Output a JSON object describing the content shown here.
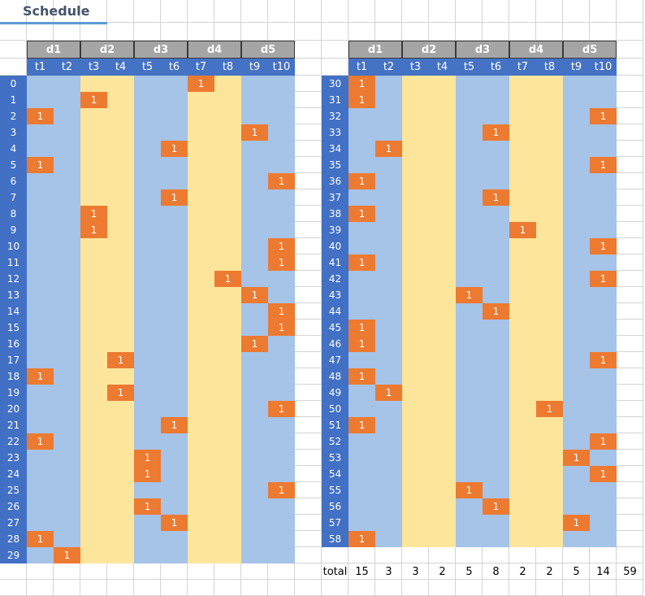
{
  "title": "Schedule",
  "groups": [
    "d1",
    "d2",
    "d3",
    "d4",
    "d5"
  ],
  "slots": [
    "t1",
    "t2",
    "t3",
    "t4",
    "t5",
    "t6",
    "t7",
    "t8",
    "t9",
    "t10"
  ],
  "cell_value": "1",
  "left_table": {
    "rows": [
      0,
      1,
      2,
      3,
      4,
      5,
      6,
      7,
      8,
      9,
      10,
      11,
      12,
      13,
      14,
      15,
      16,
      17,
      18,
      19,
      20,
      21,
      22,
      23,
      24,
      25,
      26,
      27,
      28,
      29
    ],
    "assigned_slot": [
      "t7",
      "t3",
      "t1",
      "t9",
      "t6",
      "t1",
      "t10",
      "t6",
      "t3",
      "t3",
      "t10",
      "t10",
      "t8",
      "t9",
      "t10",
      "t10",
      "t9",
      "t4",
      "t1",
      "t4",
      "t10",
      "t6",
      "t1",
      "t5",
      "t5",
      "t10",
      "t5",
      "t6",
      "t1",
      "t2"
    ]
  },
  "right_table": {
    "rows": [
      30,
      31,
      32,
      33,
      34,
      35,
      36,
      37,
      38,
      39,
      40,
      41,
      42,
      43,
      44,
      45,
      46,
      47,
      48,
      49,
      50,
      51,
      52,
      53,
      54,
      55,
      56,
      57,
      58
    ],
    "assigned_slot": [
      "t1",
      "t1",
      "t10",
      "t6",
      "t2",
      "t10",
      "t1",
      "t6",
      "t1",
      "t7",
      "t10",
      "t1",
      "t10",
      "t5",
      "t6",
      "t1",
      "t1",
      "t10",
      "t1",
      "t2",
      "t8",
      "t1",
      "t10",
      "t9",
      "t10",
      "t5",
      "t6",
      "t9",
      "t1"
    ]
  },
  "totals": {
    "label": "total",
    "values": [
      "15",
      "3",
      "3",
      "2",
      "5",
      "8",
      "2",
      "2",
      "5",
      "14"
    ],
    "grand_total": "59"
  },
  "colors": {
    "available": "#a6c3e8",
    "unavailable": "#fde59b",
    "assigned": "#ed7a31",
    "header": "#4472c4"
  }
}
